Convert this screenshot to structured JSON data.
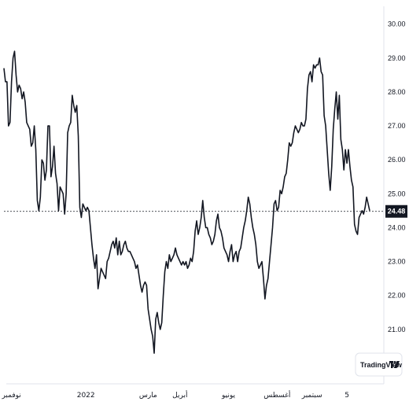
{
  "chart_data": {
    "type": "line",
    "y_ticks": [
      "30.00",
      "29.00",
      "28.00",
      "27.00",
      "26.00",
      "25.00",
      "24.00",
      "23.00",
      "22.00",
      "21.00"
    ],
    "ylim": [
      20,
      30.2
    ],
    "x_ticks": [
      {
        "label": "نوفمبر",
        "index": 5
      },
      {
        "label": "2022",
        "index": 54
      },
      {
        "label": "مارس",
        "index": 95
      },
      {
        "label": "أبريل",
        "index": 116
      },
      {
        "label": "يونيو",
        "index": 148
      },
      {
        "label": "أغسطس",
        "index": 180
      },
      {
        "label": "سبتمبر",
        "index": 203
      },
      {
        "label": "5",
        "index": 226
      }
    ],
    "last_value": 24.48,
    "last_value_label": "24.48",
    "line_color": "#131722",
    "brand": "TradingView",
    "values": [
      28.7,
      28.3,
      28.3,
      27.0,
      27.1,
      28.3,
      29.0,
      29.2,
      28.5,
      28.0,
      28.2,
      28.1,
      27.8,
      28.0,
      27.7,
      27.1,
      27.0,
      26.9,
      26.4,
      26.5,
      27.0,
      26.3,
      24.8,
      24.5,
      24.9,
      26.0,
      25.9,
      25.4,
      25.7,
      27.0,
      27.0,
      25.5,
      25.8,
      26.4,
      25.6,
      25.3,
      24.5,
      25.2,
      25.1,
      25.0,
      24.4,
      25.0,
      26.8,
      27.0,
      27.1,
      27.9,
      27.6,
      27.4,
      27.6,
      26.7,
      24.6,
      24.3,
      24.7,
      24.6,
      24.5,
      24.6,
      24.5,
      24.0,
      23.5,
      23.1,
      22.8,
      23.2,
      22.2,
      22.5,
      22.8,
      22.7,
      22.6,
      22.5,
      23.0,
      23.1,
      23.3,
      23.5,
      23.6,
      23.4,
      23.7,
      23.2,
      23.6,
      23.2,
      23.3,
      23.5,
      23.6,
      23.4,
      23.3,
      23.3,
      23.2,
      23.1,
      23.0,
      22.8,
      22.9,
      22.6,
      22.3,
      22.1,
      22.3,
      22.4,
      22.3,
      21.6,
      21.3,
      21.0,
      20.8,
      20.3,
      21.3,
      21.5,
      21.2,
      21.0,
      21.2,
      22.0,
      22.7,
      23.0,
      22.8,
      23.2,
      23.0,
      23.1,
      23.2,
      23.4,
      23.2,
      23.1,
      23.0,
      22.9,
      23.0,
      22.9,
      23.0,
      22.8,
      22.9,
      23.1,
      23.0,
      23.3,
      23.9,
      24.2,
      23.8,
      24.0,
      24.3,
      24.8,
      24.3,
      24.0,
      24.0,
      23.8,
      23.7,
      23.5,
      23.6,
      23.8,
      24.2,
      24.4,
      24.0,
      23.9,
      23.7,
      23.4,
      23.3,
      23.2,
      23.0,
      23.3,
      23.5,
      23.0,
      23.2,
      23.3,
      23.0,
      23.3,
      23.4,
      23.7,
      24.0,
      24.2,
      24.5,
      24.9,
      24.7,
      24.3,
      24.0,
      23.8,
      23.5,
      23.0,
      22.8,
      22.9,
      23.0,
      22.5,
      21.9,
      22.3,
      22.5,
      23.0,
      23.5,
      24.0,
      24.7,
      24.8,
      24.5,
      24.6,
      25.1,
      25.0,
      25.2,
      25.5,
      25.6,
      26.0,
      26.5,
      26.4,
      26.5,
      26.8,
      27.0,
      26.9,
      26.8,
      26.9,
      27.1,
      27.0,
      27.0,
      27.2,
      28.1,
      28.5,
      28.6,
      28.3,
      28.8,
      28.7,
      28.8,
      28.8,
      29.0,
      28.6,
      28.5,
      27.3,
      27.0,
      26.3,
      25.6,
      25.1,
      25.8,
      26.9,
      27.5,
      28.0,
      27.2,
      27.9,
      26.6,
      26.3,
      25.7,
      26.3,
      25.9,
      26.3,
      25.8,
      25.4,
      25.2,
      24.1,
      23.9,
      23.8,
      24.3,
      24.4,
      24.5,
      24.4,
      24.6,
      24.9,
      24.7,
      24.5
    ]
  }
}
